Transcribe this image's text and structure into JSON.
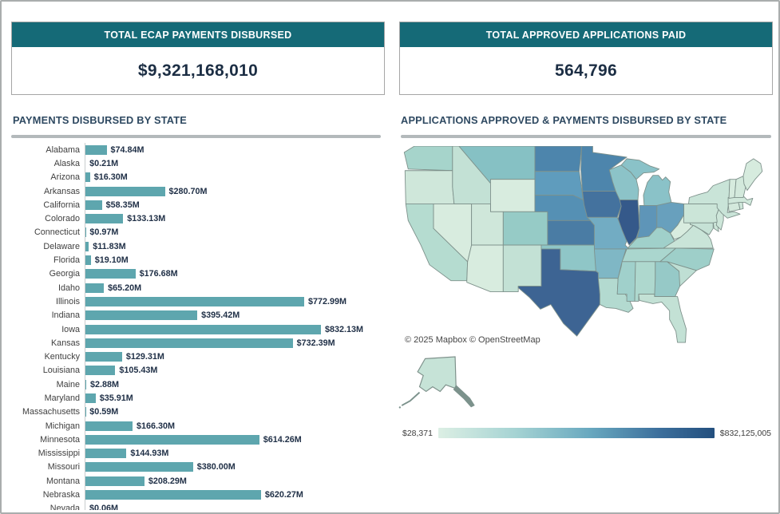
{
  "kpis": [
    {
      "title": "TOTAL ECAP PAYMENTS DISBURSED",
      "value": "$9,321,168,010"
    },
    {
      "title": "TOTAL APPROVED APPLICATIONS PAID",
      "value": "564,796"
    }
  ],
  "sections": {
    "left_title": "PAYMENTS DISBURSED BY STATE",
    "right_title": "APPLICATIONS APPROVED & PAYMENTS DISBURSED BY STATE"
  },
  "colors": {
    "header_teal": "#156a77",
    "bar_teal": "#5ea6ae",
    "title_navy": "#2e4961",
    "value_navy": "#1c2e44",
    "card_border": "#a6a6a6",
    "legend_gradient_start": "#dcefe4",
    "legend_gradient_end": "#234f7e"
  },
  "chart_data": [
    {
      "type": "bar",
      "orientation": "horizontal",
      "title": "PAYMENTS DISBURSED BY STATE",
      "unit": "USD millions",
      "xlim": [
        0,
        860
      ],
      "bars": [
        {
          "name": "Alabama",
          "value": 74.84,
          "label": "$74.84M"
        },
        {
          "name": "Alaska",
          "value": 0.21,
          "label": "$0.21M"
        },
        {
          "name": "Arizona",
          "value": 16.3,
          "label": "$16.30M"
        },
        {
          "name": "Arkansas",
          "value": 280.7,
          "label": "$280.70M"
        },
        {
          "name": "California",
          "value": 58.35,
          "label": "$58.35M"
        },
        {
          "name": "Colorado",
          "value": 133.13,
          "label": "$133.13M"
        },
        {
          "name": "Connecticut",
          "value": 0.97,
          "label": "$0.97M"
        },
        {
          "name": "Delaware",
          "value": 11.83,
          "label": "$11.83M"
        },
        {
          "name": "Florida",
          "value": 19.1,
          "label": "$19.10M"
        },
        {
          "name": "Georgia",
          "value": 176.68,
          "label": "$176.68M"
        },
        {
          "name": "Idaho",
          "value": 65.2,
          "label": "$65.20M"
        },
        {
          "name": "Illinois",
          "value": 772.99,
          "label": "$772.99M"
        },
        {
          "name": "Indiana",
          "value": 395.42,
          "label": "$395.42M"
        },
        {
          "name": "Iowa",
          "value": 832.13,
          "label": "$832.13M"
        },
        {
          "name": "Kansas",
          "value": 732.39,
          "label": "$732.39M"
        },
        {
          "name": "Kentucky",
          "value": 129.31,
          "label": "$129.31M"
        },
        {
          "name": "Louisiana",
          "value": 105.43,
          "label": "$105.43M"
        },
        {
          "name": "Maine",
          "value": 2.88,
          "label": "$2.88M"
        },
        {
          "name": "Maryland",
          "value": 35.91,
          "label": "$35.91M"
        },
        {
          "name": "Massachusetts",
          "value": 0.59,
          "label": "$0.59M"
        },
        {
          "name": "Michigan",
          "value": 166.3,
          "label": "$166.30M"
        },
        {
          "name": "Minnesota",
          "value": 614.26,
          "label": "$614.26M"
        },
        {
          "name": "Mississippi",
          "value": 144.93,
          "label": "$144.93M"
        },
        {
          "name": "Missouri",
          "value": 380.0,
          "label": "$380.00M"
        },
        {
          "name": "Montana",
          "value": 208.29,
          "label": "$208.29M"
        },
        {
          "name": "Nebraska",
          "value": 620.27,
          "label": "$620.27M"
        },
        {
          "name": "Nevada",
          "value": 0.06,
          "label": "$0.06M",
          "clipped": true
        }
      ]
    },
    {
      "type": "choropleth",
      "title": "APPLICATIONS APPROVED & PAYMENTS DISBURSED BY STATE",
      "attribution": "© 2025 Mapbox © OpenStreetMap",
      "legend": {
        "min_label": "$28,371",
        "max_label": "$832,125,005"
      },
      "states": [
        {
          "code": "WA",
          "name": "Washington",
          "fill": "#a6d4cb"
        },
        {
          "code": "OR",
          "name": "Oregon",
          "fill": "#cfe7da"
        },
        {
          "code": "CA",
          "name": "California",
          "fill": "#b5dcd0"
        },
        {
          "code": "NV",
          "name": "Nevada",
          "fill": "#d8ecdf"
        },
        {
          "code": "ID",
          "name": "Idaho",
          "fill": "#c3e1d5"
        },
        {
          "code": "MT",
          "name": "Montana",
          "fill": "#86c1c4"
        },
        {
          "code": "WY",
          "name": "Wyoming",
          "fill": "#d8ecdf"
        },
        {
          "code": "UT",
          "name": "Utah",
          "fill": "#cfe7da"
        },
        {
          "code": "CO",
          "name": "Colorado",
          "fill": "#96cbc6"
        },
        {
          "code": "AZ",
          "name": "Arizona",
          "fill": "#d8ecdf"
        },
        {
          "code": "NM",
          "name": "New Mexico",
          "fill": "#c3e1d5"
        },
        {
          "code": "ND",
          "name": "North Dakota",
          "fill": "#4d85ac"
        },
        {
          "code": "SD",
          "name": "South Dakota",
          "fill": "#5f9cbd"
        },
        {
          "code": "NE",
          "name": "Nebraska",
          "fill": "#5590b4"
        },
        {
          "code": "KS",
          "name": "Kansas",
          "fill": "#4a7ca4"
        },
        {
          "code": "OK",
          "name": "Oklahoma",
          "fill": "#8fc6c7"
        },
        {
          "code": "TX",
          "name": "Texas",
          "fill": "#3d6493"
        },
        {
          "code": "MN",
          "name": "Minnesota",
          "fill": "#4d85ac"
        },
        {
          "code": "IA",
          "name": "Iowa",
          "fill": "#44729e"
        },
        {
          "code": "MO",
          "name": "Missouri",
          "fill": "#72acc3"
        },
        {
          "code": "AR",
          "name": "Arkansas",
          "fill": "#7fb7c5"
        },
        {
          "code": "LA",
          "name": "Louisiana",
          "fill": "#b3dad0"
        },
        {
          "code": "WI",
          "name": "Wisconsin",
          "fill": "#8cc3c8"
        },
        {
          "code": "IL",
          "name": "Illinois",
          "fill": "#35598a"
        },
        {
          "code": "MI",
          "name": "Michigan",
          "fill": "#8ac2c8"
        },
        {
          "code": "IN",
          "name": "Indiana",
          "fill": "#5e95b8"
        },
        {
          "code": "OH",
          "name": "Ohio",
          "fill": "#68a0bd"
        },
        {
          "code": "KY",
          "name": "Kentucky",
          "fill": "#a0d0ca"
        },
        {
          "code": "TN",
          "name": "Tennessee",
          "fill": "#aad6ce"
        },
        {
          "code": "MS",
          "name": "Mississippi",
          "fill": "#a0d0cb"
        },
        {
          "code": "AL",
          "name": "Alabama",
          "fill": "#aed8ce"
        },
        {
          "code": "GA",
          "name": "Georgia",
          "fill": "#96c9c7"
        },
        {
          "code": "FL",
          "name": "Florida",
          "fill": "#c3e1d5"
        },
        {
          "code": "SC",
          "name": "South Carolina",
          "fill": "#bfdfd4"
        },
        {
          "code": "NC",
          "name": "North Carolina",
          "fill": "#9ecfc9"
        },
        {
          "code": "VA",
          "name": "Virginia",
          "fill": "#c9e4d8"
        },
        {
          "code": "WV",
          "name": "West Virginia",
          "fill": "#d8ecdf"
        },
        {
          "code": "MD",
          "name": "Maryland",
          "fill": "#c6e2d6"
        },
        {
          "code": "DE",
          "name": "Delaware",
          "fill": "#cde6d9"
        },
        {
          "code": "PA",
          "name": "Pennsylvania",
          "fill": "#cbe5d8"
        },
        {
          "code": "NJ",
          "name": "New Jersey",
          "fill": "#cde6d9"
        },
        {
          "code": "NY",
          "name": "New York",
          "fill": "#c9e4d8"
        },
        {
          "code": "CT",
          "name": "Connecticut",
          "fill": "#d3e9dc"
        },
        {
          "code": "RI",
          "name": "Rhode Island",
          "fill": "#cfe7da"
        },
        {
          "code": "MA",
          "name": "Massachusetts",
          "fill": "#d0e8db"
        },
        {
          "code": "VT",
          "name": "Vermont",
          "fill": "#d6ebde"
        },
        {
          "code": "NH",
          "name": "New Hampshire",
          "fill": "#d3e9dc"
        },
        {
          "code": "ME",
          "name": "Maine",
          "fill": "#d6ebde"
        },
        {
          "code": "AK",
          "name": "Alaska",
          "fill": "#c6e3d7"
        }
      ]
    }
  ]
}
